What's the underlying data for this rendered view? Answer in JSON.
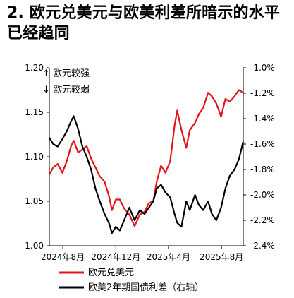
{
  "title_line1": "2. 欧元兑美元与欧美利差所暗示的水平",
  "title_line2": "已经趋同",
  "chart_data": {
    "type": "line",
    "annotations": [
      "↑ 欧元较强",
      "↓ 欧元较弱"
    ],
    "x_tick_labels": [
      "2024年8月",
      "2024年12月",
      "2025年4月",
      "2025年8月"
    ],
    "x_range": [
      "2024-07-01",
      "2025-09-20"
    ],
    "left_axis": {
      "ylim": [
        1.0,
        1.2
      ],
      "ticks": [
        1.0,
        1.05,
        1.1,
        1.15,
        1.2
      ],
      "tick_labels": [
        "1.00",
        "1.05",
        "1.10",
        "1.15",
        "1.20"
      ]
    },
    "right_axis": {
      "ylim": [
        -2.4,
        -1.0
      ],
      "ticks": [
        -2.4,
        -2.2,
        -2.0,
        -1.8,
        -1.6,
        -1.4,
        -1.2,
        -1.0
      ],
      "tick_labels": [
        "-2.4%",
        "-2.2%",
        "-2.0%",
        "-1.8%",
        "-1.6%",
        "-1.4%",
        "-1.2%",
        "-1.0%"
      ]
    },
    "series": [
      {
        "name": "欧元兑美元",
        "axis": "left",
        "color": "#e3151a",
        "dates": [
          "2024-07-01",
          "2024-07-10",
          "2024-07-20",
          "2024-07-31",
          "2024-08-10",
          "2024-08-20",
          "2024-08-26",
          "2024-09-05",
          "2024-09-15",
          "2024-09-25",
          "2024-10-05",
          "2024-10-15",
          "2024-10-25",
          "2024-11-05",
          "2024-11-15",
          "2024-11-22",
          "2024-12-01",
          "2024-12-10",
          "2024-12-20",
          "2025-01-01",
          "2025-01-13",
          "2025-01-25",
          "2025-02-05",
          "2025-02-15",
          "2025-02-25",
          "2025-03-05",
          "2025-03-15",
          "2025-03-25",
          "2025-04-05",
          "2025-04-15",
          "2025-04-21",
          "2025-05-01",
          "2025-05-12",
          "2025-05-20",
          "2025-06-01",
          "2025-06-10",
          "2025-06-20",
          "2025-07-01",
          "2025-07-10",
          "2025-07-20",
          "2025-07-31",
          "2025-08-10",
          "2025-08-20",
          "2025-08-31",
          "2025-09-10",
          "2025-09-20"
        ],
        "values": [
          1.08,
          1.088,
          1.092,
          1.082,
          1.095,
          1.112,
          1.118,
          1.105,
          1.108,
          1.112,
          1.098,
          1.088,
          1.078,
          1.072,
          1.056,
          1.04,
          1.052,
          1.052,
          1.042,
          1.035,
          1.022,
          1.035,
          1.038,
          1.048,
          1.05,
          1.072,
          1.09,
          1.082,
          1.095,
          1.135,
          1.152,
          1.13,
          1.11,
          1.13,
          1.138,
          1.148,
          1.155,
          1.172,
          1.168,
          1.16,
          1.145,
          1.165,
          1.162,
          1.168,
          1.175,
          1.172
        ]
      },
      {
        "name": "欧美2年期国债利差（右轴）",
        "axis": "right",
        "color": "#000000",
        "dates": [
          "2024-07-01",
          "2024-07-10",
          "2024-07-20",
          "2024-07-31",
          "2024-08-10",
          "2024-08-20",
          "2024-08-26",
          "2024-09-05",
          "2024-09-15",
          "2024-09-25",
          "2024-10-05",
          "2024-10-15",
          "2024-10-25",
          "2024-11-05",
          "2024-11-15",
          "2024-11-22",
          "2024-12-01",
          "2024-12-10",
          "2024-12-20",
          "2025-01-01",
          "2025-01-13",
          "2025-01-25",
          "2025-02-05",
          "2025-02-15",
          "2025-02-25",
          "2025-03-05",
          "2025-03-15",
          "2025-03-25",
          "2025-04-05",
          "2025-04-15",
          "2025-04-21",
          "2025-05-01",
          "2025-05-12",
          "2025-05-20",
          "2025-06-01",
          "2025-06-10",
          "2025-06-20",
          "2025-07-01",
          "2025-07-10",
          "2025-07-20",
          "2025-07-31",
          "2025-08-10",
          "2025-08-20",
          "2025-08-31",
          "2025-09-10",
          "2025-09-20"
        ],
        "values": [
          -1.55,
          -1.6,
          -1.62,
          -1.56,
          -1.5,
          -1.42,
          -1.38,
          -1.48,
          -1.62,
          -1.7,
          -1.8,
          -1.95,
          -2.05,
          -2.15,
          -2.22,
          -2.3,
          -2.25,
          -2.28,
          -2.2,
          -2.1,
          -2.2,
          -2.12,
          -2.15,
          -2.1,
          -2.05,
          -1.95,
          -1.92,
          -1.98,
          -2.02,
          -2.15,
          -2.22,
          -2.25,
          -2.05,
          -2.12,
          -2.0,
          -2.08,
          -2.12,
          -2.05,
          -2.15,
          -2.2,
          -2.1,
          -1.95,
          -1.85,
          -1.8,
          -1.72,
          -1.58
        ]
      }
    ]
  }
}
